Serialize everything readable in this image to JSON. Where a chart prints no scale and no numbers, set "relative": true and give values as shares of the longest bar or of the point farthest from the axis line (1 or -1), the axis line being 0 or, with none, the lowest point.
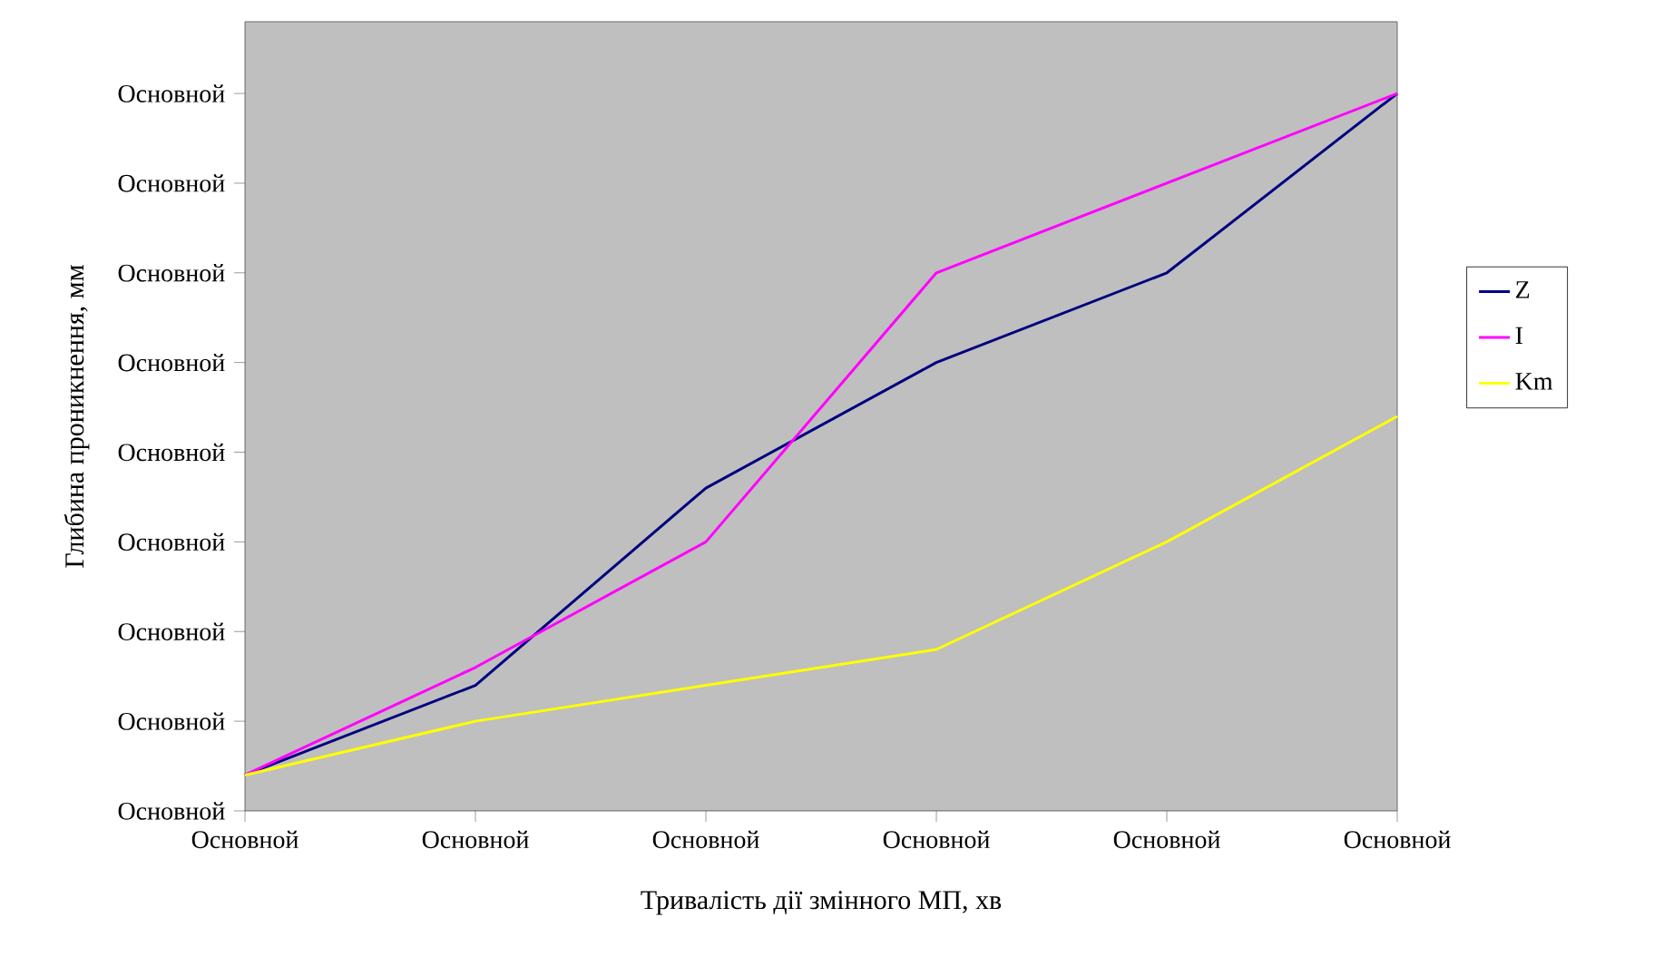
{
  "chart_data": {
    "type": "line",
    "relative": true,
    "xlabel": "Тривалість дії змінного МП, хв",
    "ylabel": "Глибина проникнення, мм",
    "categories": [
      "Основной",
      "Основной",
      "Основной",
      "Основной",
      "Основной",
      "Основной"
    ],
    "annotations": [
      "Основной",
      "Основной",
      "Основной",
      "Основной",
      "Основной",
      "Основной",
      "Основной",
      "Основной",
      "Основной"
    ],
    "series": [
      {
        "name": "Z",
        "color": "#000080",
        "values": [
          0.05,
          0.175,
          0.45,
          0.625,
          0.75,
          1
        ]
      },
      {
        "name": "I",
        "color": "#ff00ff",
        "values": [
          0.05,
          0.2,
          0.375,
          0.75,
          0.875,
          1
        ]
      },
      {
        "name": "Km",
        "color": "#ffff00",
        "values": [
          0.05,
          0.125,
          0.175,
          0.225,
          0.375,
          0.55
        ]
      }
    ],
    "grid": false,
    "legend": "right",
    "marker": "none",
    "line_style": "solid"
  }
}
